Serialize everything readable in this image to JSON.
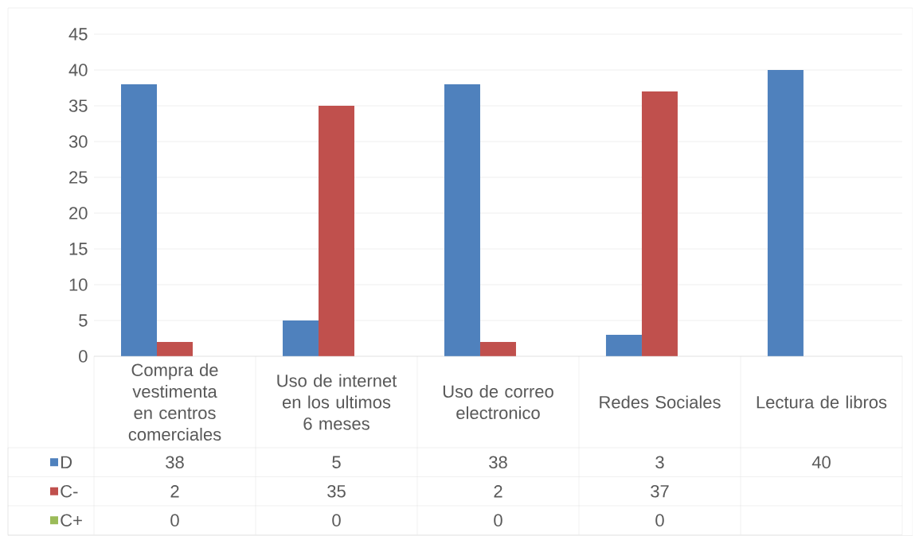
{
  "chart_data": {
    "type": "bar",
    "categories": [
      "Compra de vestimenta en centros comerciales",
      "Uso de internet en los ultimos 6 meses",
      "Uso de correo electronico",
      "Redes Sociales",
      "Lectura de libros"
    ],
    "series": [
      {
        "name": "D",
        "color": "#4f81bd",
        "values": [
          38,
          5,
          38,
          3,
          40
        ]
      },
      {
        "name": "C-",
        "color": "#c0504d",
        "values": [
          2,
          35,
          2,
          37,
          null
        ]
      },
      {
        "name": "C+",
        "color": "#9bbb59",
        "values": [
          0,
          0,
          0,
          0,
          null
        ]
      }
    ],
    "ylim": [
      0,
      45
    ],
    "yticks": [
      0,
      5,
      10,
      15,
      20,
      25,
      30,
      35,
      40,
      45
    ],
    "grid": "y",
    "legend": "bottom",
    "data_labels": true
  }
}
